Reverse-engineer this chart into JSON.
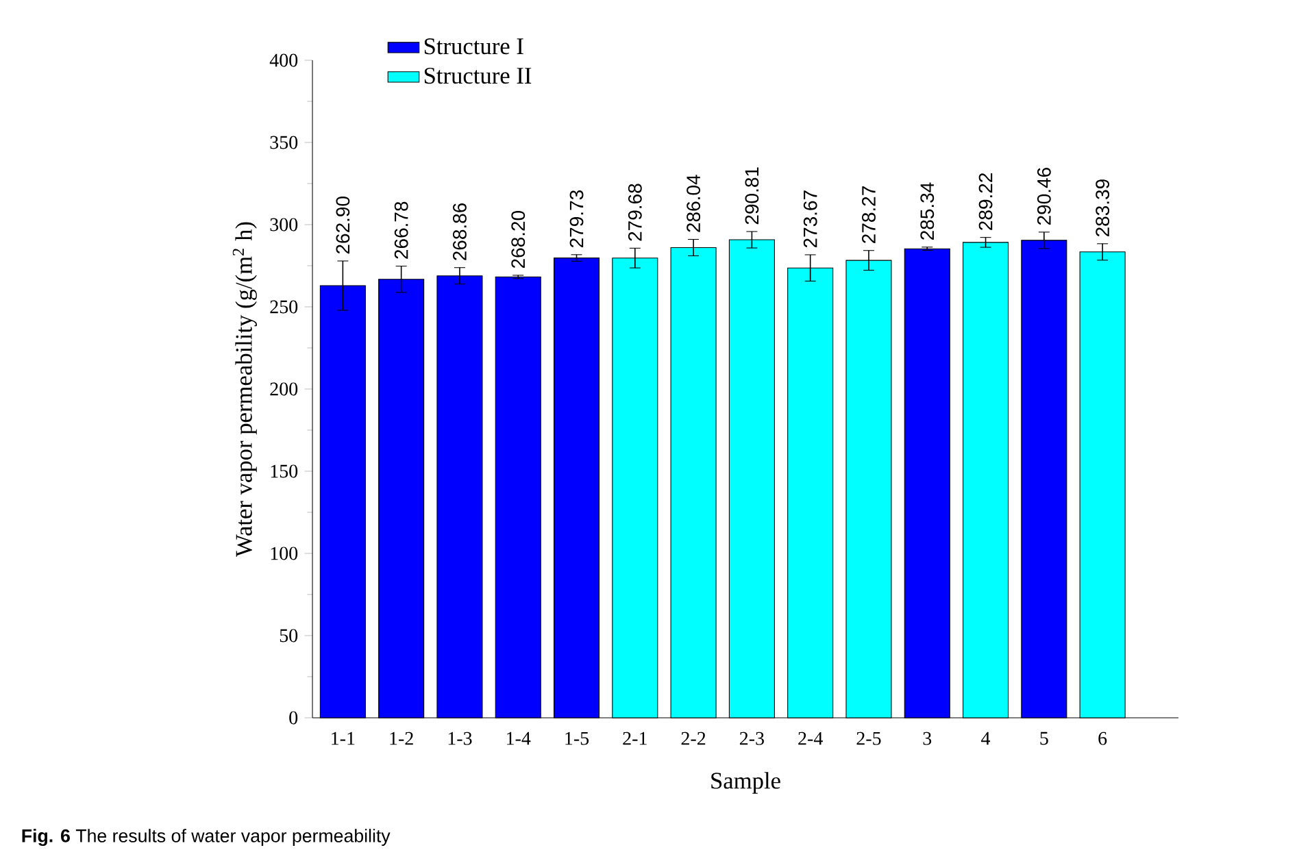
{
  "chart_data": {
    "type": "bar",
    "xlabel": "Sample",
    "ylabel": "Water vapor permeability (g/(m$^{2}$ h)",
    "categories": [
      "1-1",
      "1-2",
      "1-3",
      "1-4",
      "1-5",
      "2-1",
      "2-2",
      "2-3",
      "2-4",
      "2-5",
      "3",
      "4",
      "5",
      "6"
    ],
    "series": [
      {
        "name": "Structure I",
        "color": "#0000ff",
        "values": [
          262.9,
          266.78,
          268.86,
          268.2,
          279.73,
          null,
          null,
          null,
          null,
          null,
          285.34,
          null,
          290.46,
          null
        ],
        "errors": [
          15,
          8,
          5,
          1,
          2,
          null,
          null,
          null,
          null,
          null,
          1,
          null,
          5,
          null
        ],
        "value_labels": [
          "262.90",
          "266.78",
          "268.86",
          "268.20",
          "279.73",
          null,
          null,
          null,
          null,
          null,
          "285.34",
          null,
          "290.46",
          null
        ]
      },
      {
        "name": "Structure II",
        "color": "#00ffff",
        "values": [
          null,
          null,
          null,
          null,
          null,
          279.68,
          286.04,
          290.81,
          273.67,
          278.27,
          null,
          289.22,
          null,
          283.39
        ],
        "errors": [
          null,
          null,
          null,
          null,
          null,
          6,
          5,
          5,
          8,
          6,
          null,
          3,
          null,
          5
        ],
        "value_labels": [
          null,
          null,
          null,
          null,
          null,
          "279.68",
          "286.04",
          "290.81",
          "273.67",
          "278.27",
          null,
          "289.22",
          null,
          "283.39"
        ]
      }
    ],
    "ylim": [
      0,
      400
    ],
    "yticks": [
      0,
      50,
      100,
      150,
      200,
      250,
      300,
      350,
      400
    ],
    "legend": "top left",
    "annotations": [
      "**Fig. 6** The results of water vapor permeability"
    ]
  }
}
